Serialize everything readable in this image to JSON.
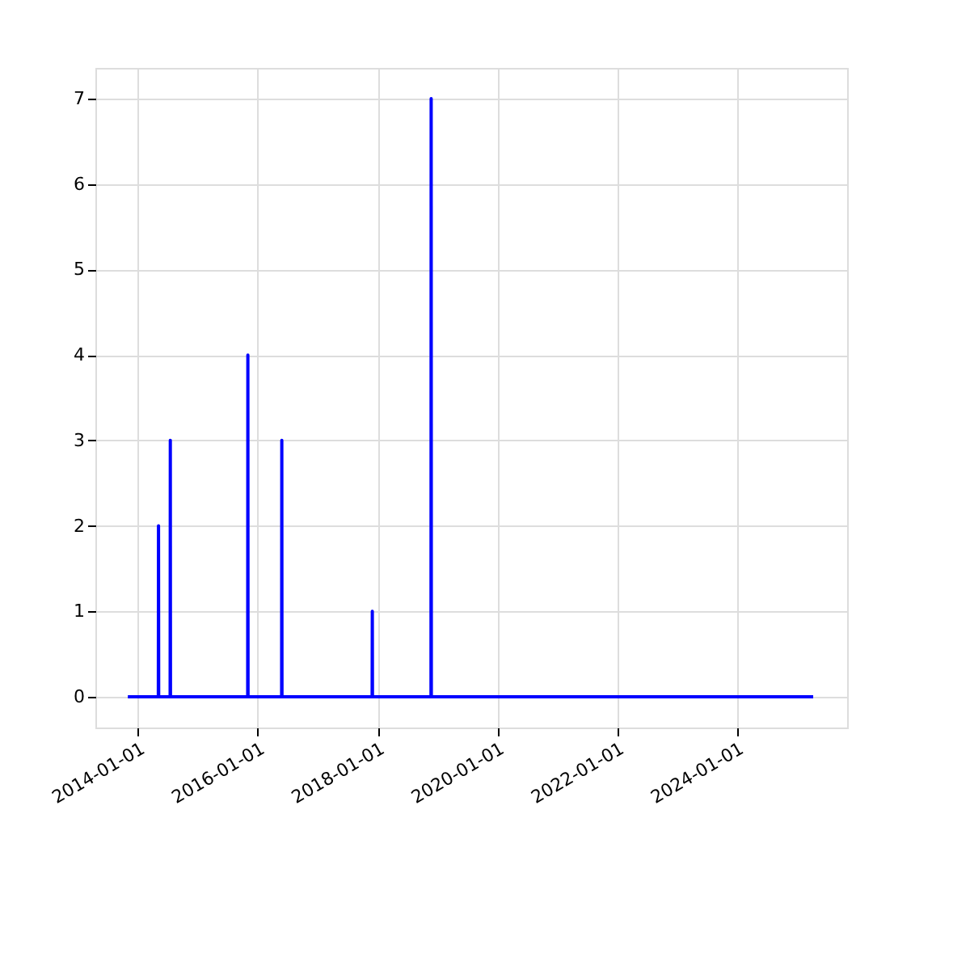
{
  "chart_data": {
    "type": "line",
    "x": [
      "2013-10-31",
      "2014-05-05",
      "2014-05-06",
      "2014-05-07",
      "2014-07-16",
      "2014-07-17",
      "2014-07-18",
      "2015-11-01",
      "2015-11-02",
      "2015-11-03",
      "2016-05-26",
      "2016-05-27",
      "2016-05-28",
      "2017-11-29",
      "2017-11-30",
      "2017-12-01",
      "2018-11-23",
      "2018-11-24",
      "2018-11-25",
      "2025-04-11"
    ],
    "series": [
      {
        "color": "#0000ff",
        "values": [
          0,
          0,
          2,
          0,
          0,
          3,
          0,
          0,
          4,
          0,
          0,
          3,
          0,
          0,
          1,
          0,
          0,
          7,
          0,
          0
        ]
      }
    ],
    "xlim": [
      "2013-04-16",
      "2025-11-04"
    ],
    "xticks": [
      "2014-01-01",
      "2016-01-01",
      "2018-01-01",
      "2020-01-01",
      "2022-01-01",
      "2024-01-01"
    ],
    "ylim": [
      -0.36,
      7.36
    ],
    "yticks": [
      0,
      1,
      2,
      3,
      4,
      5,
      6,
      7
    ],
    "grid": true,
    "line_style": "solid",
    "marker": "none"
  }
}
